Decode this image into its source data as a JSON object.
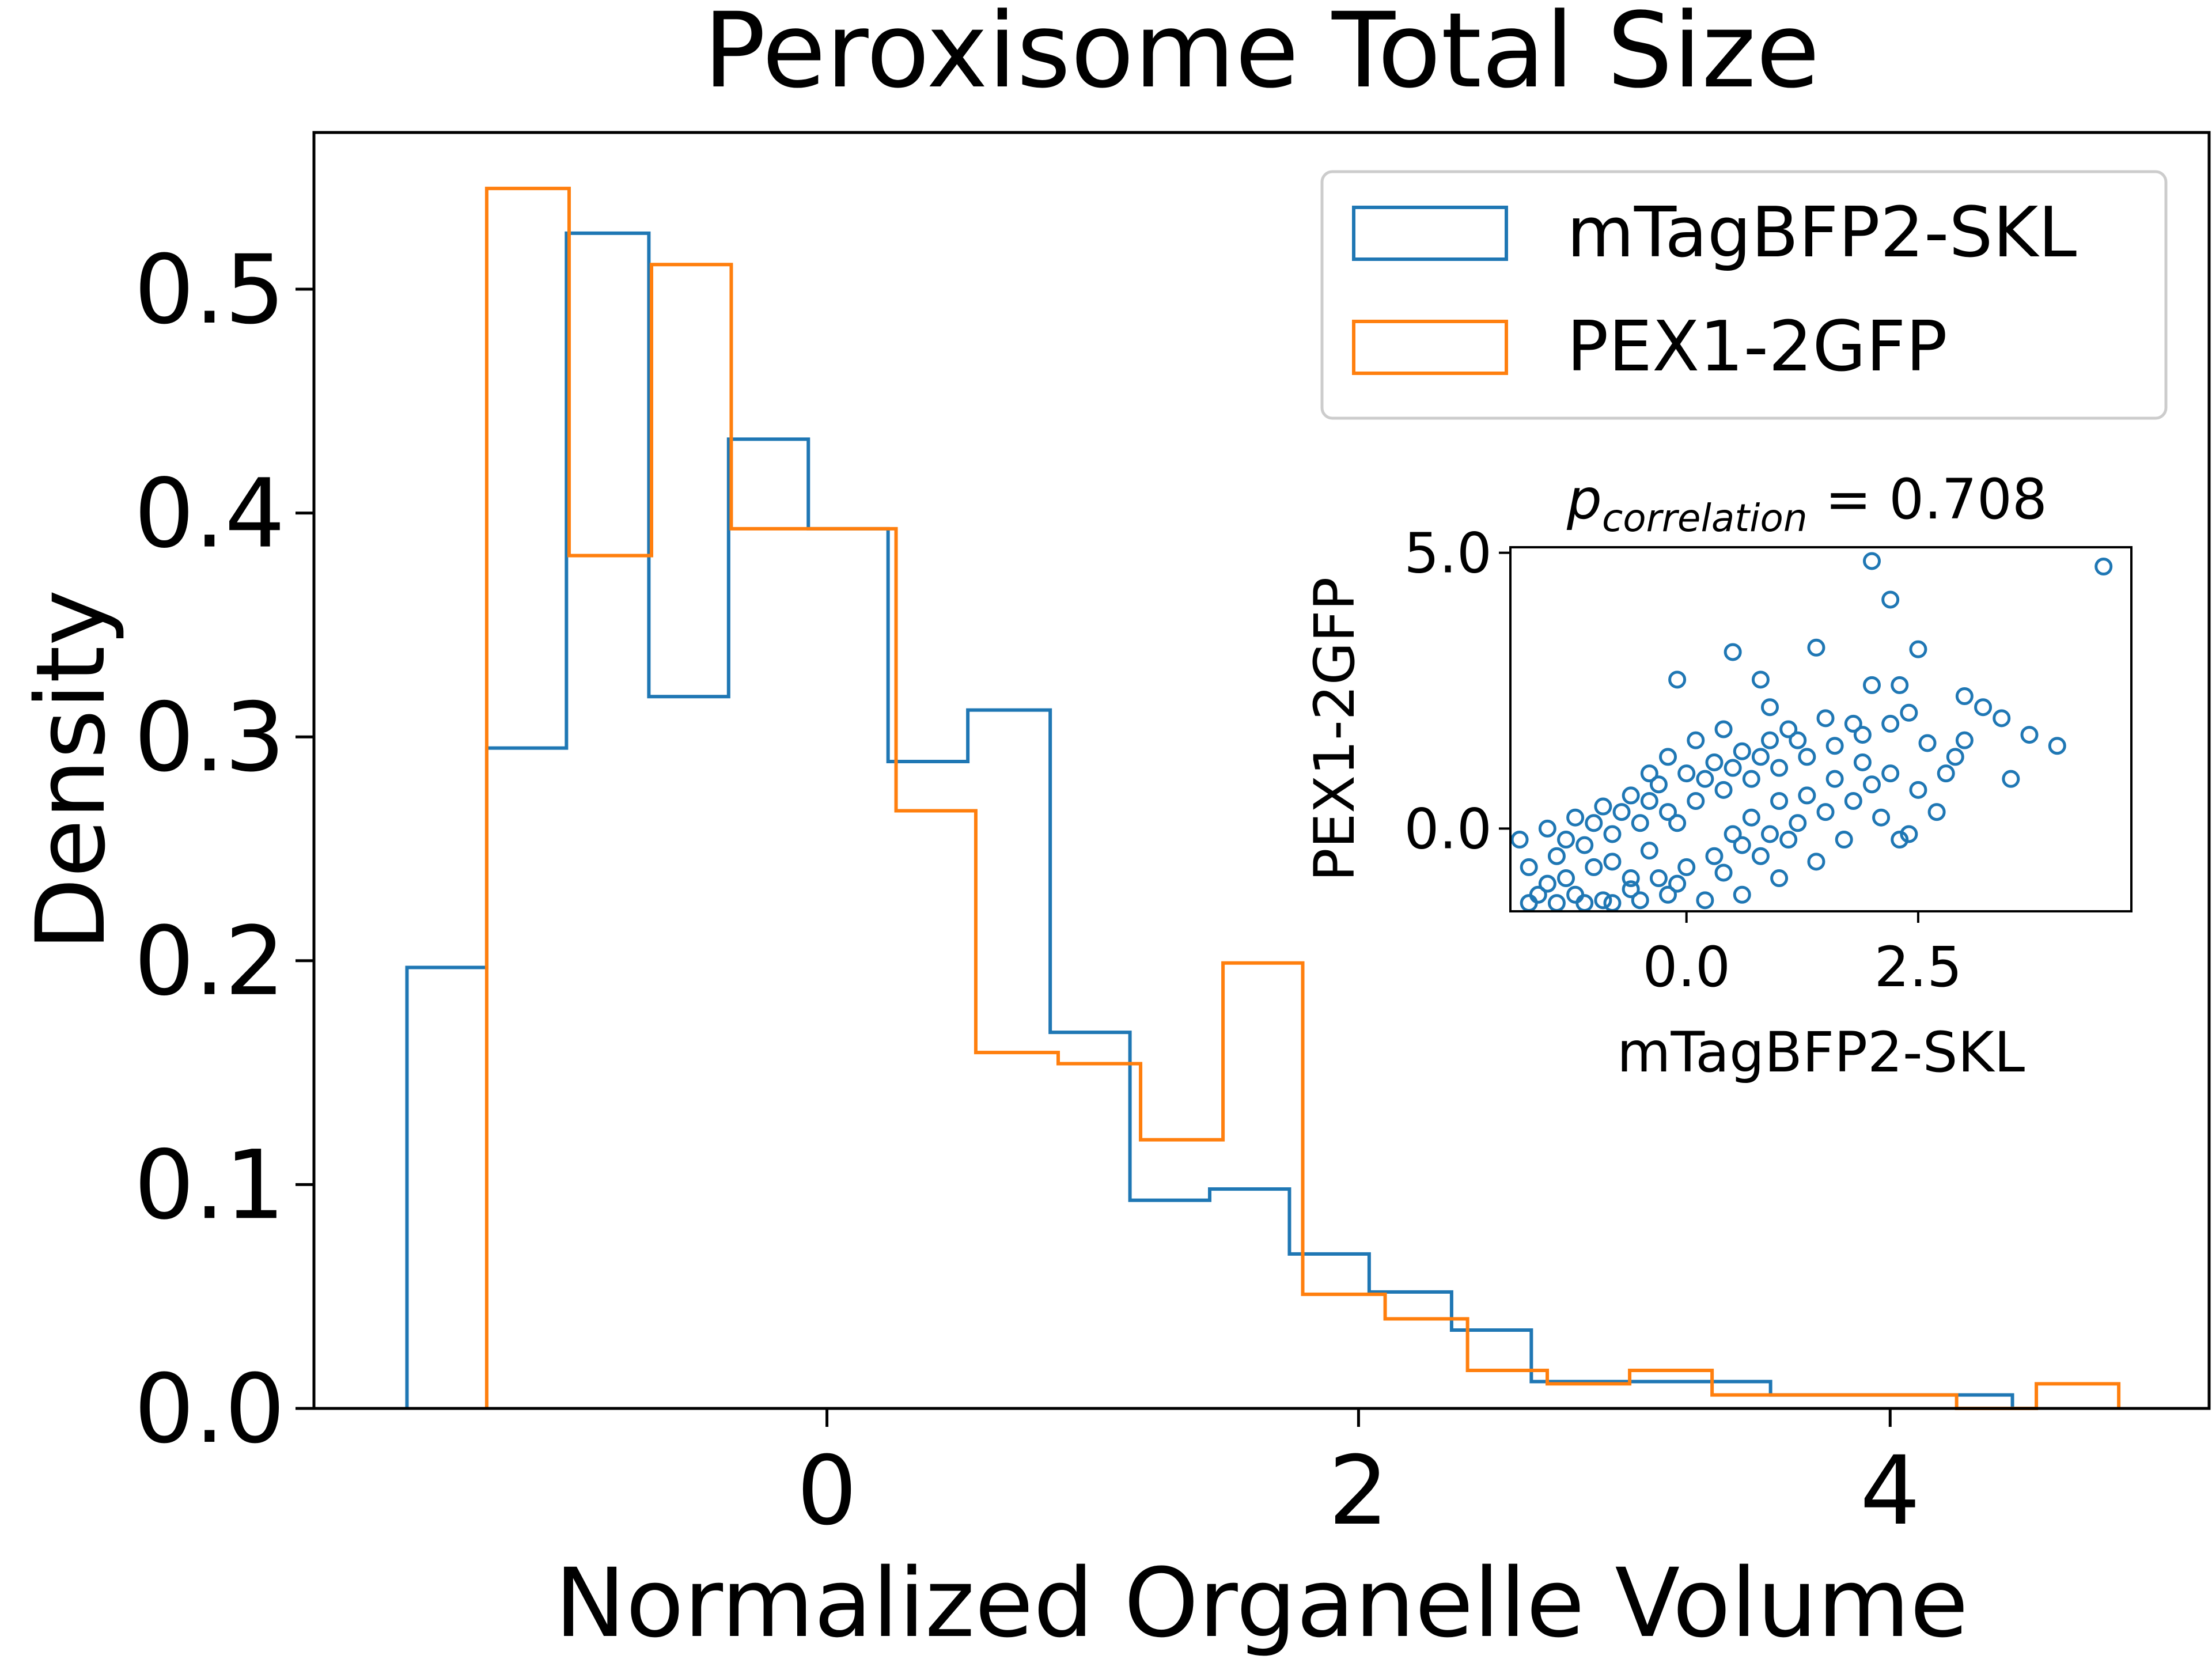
{
  "chart_data": [
    {
      "type": "histogram-step",
      "title": "Peroxisome Total Size",
      "xlabel": "Normalized Organelle Volume",
      "ylabel": "Density",
      "xlim": [
        -1.93,
        5.2
      ],
      "ylim": [
        0,
        0.57
      ],
      "xticks": [
        0,
        2,
        4
      ],
      "xtick_labels": [
        "0",
        "2",
        "4"
      ],
      "yticks": [
        0.0,
        0.1,
        0.2,
        0.3,
        0.4,
        0.5
      ],
      "ytick_labels": [
        "0.0",
        "0.1",
        "0.2",
        "0.3",
        "0.4",
        "0.5"
      ],
      "legend": {
        "position": "top-right"
      },
      "series": [
        {
          "name": "mTagBFP2-SKL",
          "color": "#1f77b4",
          "bin_edges": [
            -1.58,
            -1.28,
            -0.98,
            -0.67,
            -0.37,
            -0.07,
            0.23,
            0.53,
            0.84,
            1.14,
            1.44,
            1.74,
            2.04,
            2.35,
            2.65,
            2.95,
            3.25,
            3.55,
            3.86,
            4.16,
            4.46
          ],
          "density": [
            0.197,
            0.295,
            0.525,
            0.318,
            0.433,
            0.393,
            0.289,
            0.312,
            0.168,
            0.093,
            0.098,
            0.069,
            0.052,
            0.035,
            0.012,
            0.012,
            0.012,
            0.006,
            0.006,
            0.006
          ]
        },
        {
          "name": "PEX1-2GFP",
          "color": "#ff7f0e",
          "bin_edges": [
            -1.28,
            -0.97,
            -0.66,
            -0.36,
            -0.05,
            0.26,
            0.56,
            0.87,
            1.18,
            1.49,
            1.79,
            2.1,
            2.41,
            2.71,
            3.02,
            3.33,
            3.63,
            3.94,
            4.25,
            4.55,
            4.86
          ],
          "density": [
            0.545,
            0.381,
            0.511,
            0.393,
            0.393,
            0.267,
            0.159,
            0.154,
            0.12,
            0.199,
            0.051,
            0.04,
            0.017,
            0.011,
            0.017,
            0.006,
            0.006,
            0.006,
            0.0,
            0.011
          ]
        }
      ]
    },
    {
      "type": "scatter",
      "title_main": "p",
      "title_sub": "correlation",
      "title_rest": " = 0.708",
      "xlabel": "mTagBFP2-SKL",
      "ylabel": "PEX1-2GFP",
      "xlim": [
        -1.9,
        4.8
      ],
      "ylim": [
        -1.5,
        5.1
      ],
      "xticks": [
        0.0,
        2.5
      ],
      "xtick_labels": [
        "0.0",
        "2.5"
      ],
      "yticks": [
        0.0,
        5.0
      ],
      "ytick_labels": [
        "0.0",
        "5.0"
      ],
      "marker": "open-circle",
      "color": "#1f77b4",
      "points": [
        [
          4.5,
          4.75
        ],
        [
          2.0,
          4.85
        ],
        [
          2.2,
          4.15
        ],
        [
          2.5,
          3.25
        ],
        [
          1.4,
          3.28
        ],
        [
          0.5,
          3.2
        ],
        [
          -0.1,
          2.7
        ],
        [
          0.8,
          2.7
        ],
        [
          2.0,
          2.6
        ],
        [
          2.3,
          2.6
        ],
        [
          3.0,
          2.4
        ],
        [
          3.2,
          2.2
        ],
        [
          3.4,
          2.0
        ],
        [
          3.7,
          1.7
        ],
        [
          4.0,
          1.5
        ],
        [
          3.5,
          0.9
        ],
        [
          2.9,
          1.3
        ],
        [
          2.6,
          1.55
        ],
        [
          2.2,
          1.9
        ],
        [
          1.9,
          1.7
        ],
        [
          1.6,
          1.5
        ],
        [
          1.3,
          1.3
        ],
        [
          1.0,
          1.1
        ],
        [
          0.7,
          0.9
        ],
        [
          0.4,
          0.7
        ],
        [
          0.1,
          0.5
        ],
        [
          -0.2,
          0.3
        ],
        [
          -0.5,
          0.1
        ],
        [
          -0.8,
          -0.1
        ],
        [
          -1.1,
          -0.3
        ],
        [
          -1.4,
          -0.5
        ],
        [
          -1.7,
          -0.7
        ],
        [
          -1.5,
          -1.0
        ],
        [
          -1.2,
          -1.2
        ],
        [
          -0.9,
          -1.3
        ],
        [
          -0.6,
          -1.1
        ],
        [
          -0.3,
          -0.9
        ],
        [
          0.0,
          -0.7
        ],
        [
          0.3,
          -0.5
        ],
        [
          0.6,
          -0.3
        ],
        [
          0.9,
          -0.1
        ],
        [
          1.2,
          0.1
        ],
        [
          1.5,
          0.3
        ],
        [
          1.8,
          0.5
        ],
        [
          2.1,
          0.2
        ],
        [
          2.4,
          -0.1
        ],
        [
          1.7,
          -0.2
        ],
        [
          1.4,
          -0.6
        ],
        [
          1.0,
          -0.9
        ],
        [
          0.6,
          -1.2
        ],
        [
          0.2,
          -1.3
        ],
        [
          -0.2,
          -1.2
        ],
        [
          -0.6,
          -0.9
        ],
        [
          -1.0,
          -0.7
        ],
        [
          -1.3,
          -0.9
        ],
        [
          -1.6,
          -1.2
        ],
        [
          -1.7,
          -1.35
        ],
        [
          -1.4,
          -1.35
        ],
        [
          -1.1,
          -1.35
        ],
        [
          -0.8,
          -1.35
        ],
        [
          -0.5,
          -1.3
        ],
        [
          -0.1,
          -1.0
        ],
        [
          0.4,
          -0.8
        ],
        [
          0.8,
          -0.5
        ],
        [
          1.1,
          -0.2
        ],
        [
          1.3,
          0.6
        ],
        [
          1.6,
          0.9
        ],
        [
          1.9,
          1.2
        ],
        [
          2.2,
          1.0
        ],
        [
          2.5,
          0.7
        ],
        [
          2.7,
          0.3
        ],
        [
          2.3,
          -0.2
        ],
        [
          1.8,
          1.9
        ],
        [
          1.5,
          2.0
        ],
        [
          1.1,
          1.8
        ],
        [
          0.9,
          1.6
        ],
        [
          0.6,
          1.4
        ],
        [
          0.3,
          1.2
        ],
        [
          0.0,
          1.0
        ],
        [
          -0.3,
          0.8
        ],
        [
          -0.6,
          0.6
        ],
        [
          -0.9,
          0.4
        ],
        [
          -1.2,
          0.2
        ],
        [
          -1.5,
          0.0
        ],
        [
          -1.8,
          -0.2
        ],
        [
          -1.0,
          0.1
        ],
        [
          -0.7,
          0.3
        ],
        [
          -0.4,
          0.5
        ],
        [
          0.2,
          0.9
        ],
        [
          0.5,
          1.1
        ],
        [
          0.8,
          1.3
        ],
        [
          1.2,
          1.6
        ],
        [
          0.1,
          1.6
        ],
        [
          -0.2,
          1.3
        ],
        [
          2.0,
          0.8
        ],
        [
          2.8,
          1.0
        ],
        [
          3.0,
          1.6
        ],
        [
          2.4,
          2.1
        ],
        [
          0.9,
          2.2
        ],
        [
          0.4,
          1.8
        ],
        [
          -0.4,
          1.0
        ],
        [
          -1.3,
          -0.2
        ],
        [
          -0.8,
          -0.6
        ],
        [
          0.7,
          0.2
        ],
        [
          1.0,
          0.5
        ],
        [
          0.5,
          -0.1
        ],
        [
          -0.1,
          0.1
        ],
        [
          -0.4,
          -0.4
        ]
      ]
    }
  ]
}
